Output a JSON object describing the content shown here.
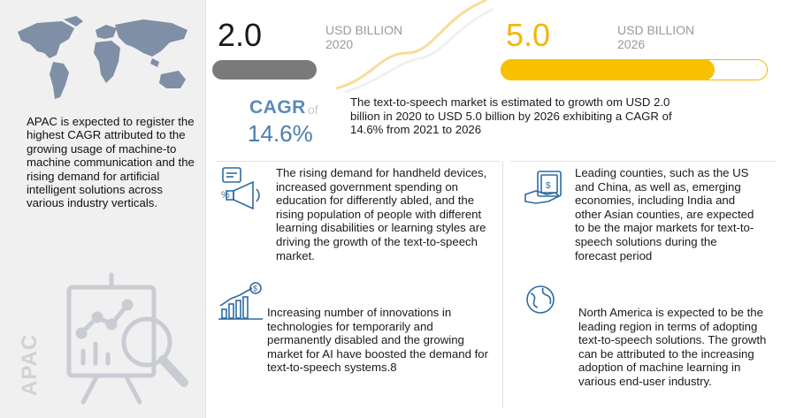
{
  "metrics": {
    "value_2020": "2.0",
    "unit_2020": "USD BILLION",
    "year_2020": "2020",
    "value_2026": "5.0",
    "unit_2026": "USD BILLION",
    "year_2026": "2026",
    "fill_2026_fraction": 0.8
  },
  "cagr": {
    "label": "CAGR",
    "of": "of",
    "value": "14.6%"
  },
  "summary": "The text-to-speech market is estimated to growth om USD 2.0 billion in 2020 to USD 5.0 billion by 2026 exhibiting a CAGR of 14.6% from 2021 to 2026",
  "sidebar": {
    "apac_text": "APAC is expected to register the highest CAGR attributed to the growing usage of machine-to machine communication and the rising demand for artificial intelligent solutions across various industry verticals.",
    "region_label": "APAC"
  },
  "blocks": {
    "rising_demand": "The rising demand for handheld devices, increased government spending on education for differently abled, and the rising population of people with different learning disabilities or learning styles are driving the growth of the text-to-speech market.",
    "innovations": "Increasing number of innovations in technologies for temporarily and permanently disabled and the growing market for AI have boosted the demand for text-to-speech systems.8",
    "leading_countries": "Leading counties, such as the US and China, as well as, emerging economies, including India and other Asian counties, are expected to be the major markets for text-to-speech solutions during the forecast period",
    "north_america": "North America is expected to be the leading region in terms of adopting text-to-speech solutions. The growth can be attributed to the increasing adoption of machine learning in various end-user industry."
  },
  "colors": {
    "accent_yellow": "#f7c100",
    "accent_blue": "#2e6aa3",
    "bar_gray": "#7a7a7a"
  },
  "icons": [
    "world-map-icon",
    "presentation-chart-icon",
    "megaphone-icon",
    "growth-chart-icon",
    "money-hand-icon",
    "globe-icon"
  ]
}
